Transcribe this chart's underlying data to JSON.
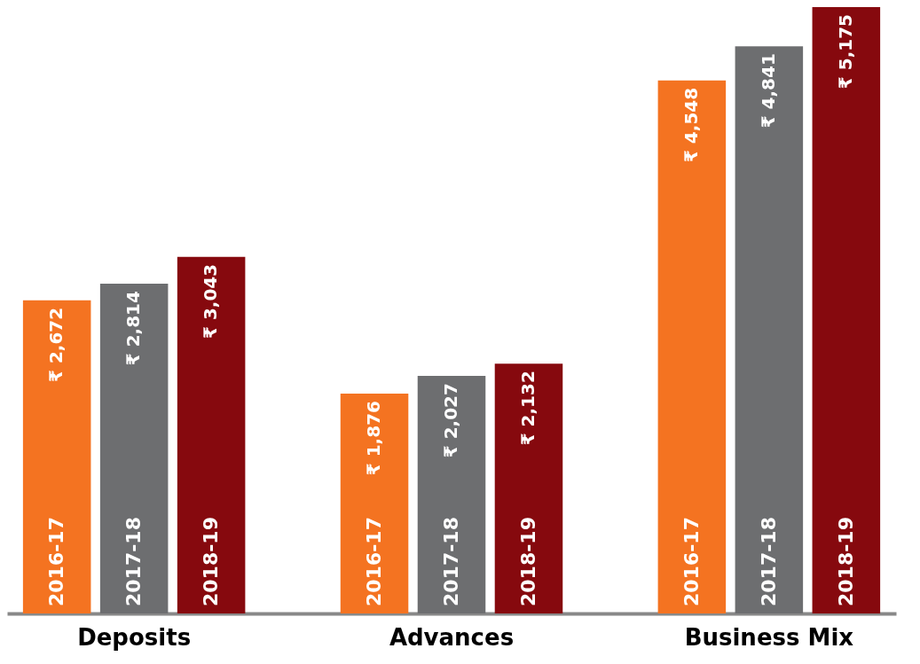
{
  "chart_data": {
    "type": "bar",
    "categories": [
      "Deposits",
      "Advances",
      "Business Mix"
    ],
    "series": [
      {
        "name": "2016-17",
        "color": "#f47321",
        "values": [
          2672,
          1876,
          4548
        ],
        "value_labels": [
          "₹ 2,672",
          "₹ 1,876",
          "₹ 4,548"
        ]
      },
      {
        "name": "2017-18",
        "color": "#6d6e70",
        "values": [
          2814,
          2027,
          4841
        ],
        "value_labels": [
          "₹ 2,814",
          "₹ 2,027",
          "₹ 4,841"
        ]
      },
      {
        "name": "2018-19",
        "color": "#86090e",
        "values": [
          3043,
          2132,
          5175
        ],
        "value_labels": [
          "₹ 3,043",
          "₹ 2,132",
          "₹ 5,175"
        ]
      }
    ],
    "legend": false,
    "grid": false
  }
}
